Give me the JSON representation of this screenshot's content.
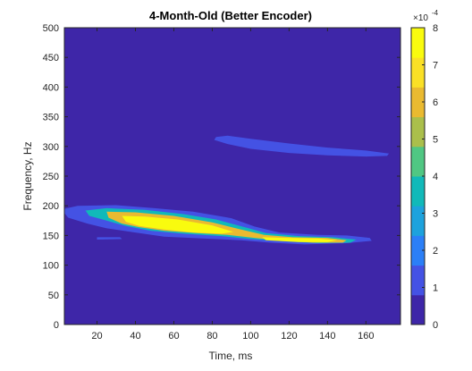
{
  "chart_data": {
    "type": "heatmap",
    "title": "4-Month-Old (Better Encoder)",
    "xlabel": "Time, ms",
    "ylabel": "Frequency, Hz",
    "xlim": [
      3,
      178
    ],
    "ylim": [
      0,
      500
    ],
    "xticks": [
      20,
      40,
      60,
      80,
      100,
      120,
      140,
      160
    ],
    "yticks": [
      0,
      50,
      100,
      150,
      200,
      250,
      300,
      350,
      400,
      450,
      500
    ],
    "grid": false,
    "colorbar": {
      "label_exponent": "×10",
      "exponent_value": "-4",
      "range": [
        0,
        8
      ],
      "ticks": [
        0,
        1,
        2,
        3,
        4,
        5,
        6,
        7,
        8
      ],
      "colormap": "parula",
      "colors": [
        "#3e26a8",
        "#4452e4",
        "#2b7ff7",
        "#1da2dd",
        "#11b9b9",
        "#50c783",
        "#aabf4b",
        "#eaba30",
        "#fae026",
        "#f9fb0e"
      ]
    },
    "background_value": 0,
    "regions": [
      {
        "level": 1,
        "points": [
          [
            3,
            195
          ],
          [
            10,
            200
          ],
          [
            30,
            201
          ],
          [
            50,
            196
          ],
          [
            70,
            190
          ],
          [
            90,
            179
          ],
          [
            102,
            165
          ],
          [
            115,
            155
          ],
          [
            135,
            151
          ],
          [
            150,
            150
          ],
          [
            162,
            146
          ],
          [
            163,
            141
          ],
          [
            150,
            137
          ],
          [
            128,
            135
          ],
          [
            110,
            138
          ],
          [
            95,
            142
          ],
          [
            75,
            145
          ],
          [
            55,
            148
          ],
          [
            40,
            155
          ],
          [
            25,
            162
          ],
          [
            15,
            170
          ],
          [
            5,
            180
          ],
          [
            3,
            188
          ]
        ]
      },
      {
        "level": 1,
        "points": [
          [
            20,
            147
          ],
          [
            32,
            147
          ],
          [
            33,
            144
          ],
          [
            20,
            143
          ]
        ]
      },
      {
        "level": 1,
        "points": [
          [
            82,
            316
          ],
          [
            88,
            318
          ],
          [
            100,
            313
          ],
          [
            120,
            305
          ],
          [
            140,
            298
          ],
          [
            160,
            293
          ],
          [
            172,
            288
          ],
          [
            171,
            284
          ],
          [
            160,
            283
          ],
          [
            140,
            285
          ],
          [
            120,
            289
          ],
          [
            100,
            296
          ],
          [
            88,
            304
          ],
          [
            81,
            311
          ]
        ]
      },
      {
        "level": 4,
        "points": [
          [
            14,
            192
          ],
          [
            25,
            196
          ],
          [
            45,
            193
          ],
          [
            65,
            186
          ],
          [
            82,
            177
          ],
          [
            98,
            163
          ],
          [
            108,
            154
          ],
          [
            125,
            149
          ],
          [
            143,
            147
          ],
          [
            155,
            143
          ],
          [
            152,
            138
          ],
          [
            135,
            137
          ],
          [
            118,
            140
          ],
          [
            100,
            144
          ],
          [
            85,
            149
          ],
          [
            65,
            153
          ],
          [
            48,
            158
          ],
          [
            35,
            166
          ],
          [
            25,
            175
          ],
          [
            16,
            183
          ]
        ]
      },
      {
        "level": 7,
        "points": [
          [
            25,
            190
          ],
          [
            40,
            189
          ],
          [
            60,
            183
          ],
          [
            80,
            172
          ],
          [
            95,
            160
          ],
          [
            107,
            151
          ],
          [
            122,
            147
          ],
          [
            140,
            146
          ],
          [
            150,
            142
          ],
          [
            148,
            138
          ],
          [
            132,
            138
          ],
          [
            117,
            141
          ],
          [
            102,
            146
          ],
          [
            88,
            151
          ],
          [
            72,
            154
          ],
          [
            55,
            158
          ],
          [
            42,
            164
          ],
          [
            33,
            170
          ],
          [
            26,
            180
          ]
        ]
      },
      {
        "level": 9,
        "points": [
          [
            33,
            183
          ],
          [
            45,
            182
          ],
          [
            62,
            177
          ],
          [
            80,
            167
          ],
          [
            91,
            156
          ],
          [
            85,
            153
          ],
          [
            70,
            155
          ],
          [
            55,
            160
          ],
          [
            42,
            166
          ],
          [
            35,
            173
          ]
        ]
      },
      {
        "level": 9,
        "points": [
          [
            106,
            147
          ],
          [
            118,
            146
          ],
          [
            135,
            145
          ],
          [
            145,
            142
          ],
          [
            140,
            139
          ],
          [
            125,
            139
          ],
          [
            108,
            142
          ]
        ]
      }
    ]
  }
}
